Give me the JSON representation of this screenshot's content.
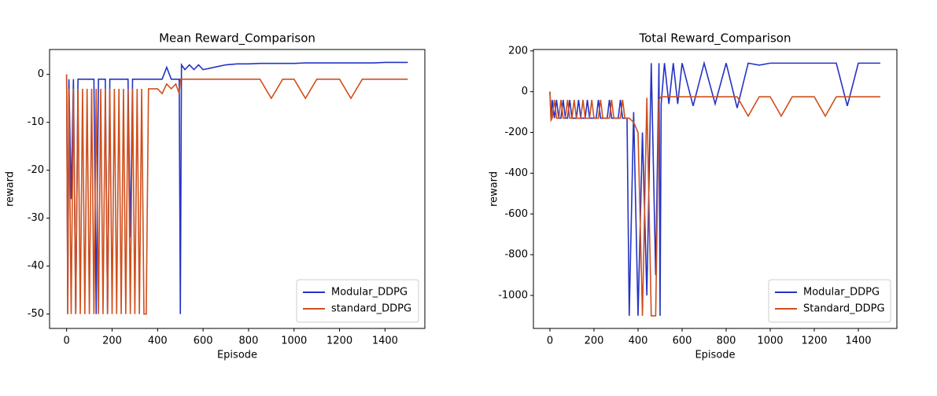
{
  "chart_data": [
    {
      "type": "line",
      "title": "Mean Reward_Comparison",
      "x_label": "Episode",
      "y_label": "reward",
      "x": [
        0,
        5,
        10,
        20,
        30,
        40,
        50,
        60,
        70,
        80,
        90,
        100,
        110,
        120,
        130,
        140,
        150,
        160,
        170,
        180,
        190,
        200,
        210,
        220,
        230,
        240,
        250,
        260,
        270,
        280,
        290,
        300,
        310,
        320,
        330,
        340,
        350,
        360,
        380,
        400,
        420,
        440,
        460,
        480,
        495,
        500,
        505,
        520,
        540,
        560,
        580,
        600,
        650,
        700,
        750,
        800,
        850,
        900,
        950,
        1000,
        1050,
        1100,
        1150,
        1200,
        1250,
        1300,
        1350,
        1400,
        1450,
        1500
      ],
      "series": [
        {
          "name": "Modular_DDPG",
          "color": "#2433c4",
          "values": [
            0,
            -50,
            -1,
            -26,
            -1,
            -50,
            -1,
            -1,
            -1,
            -1,
            -1,
            -1,
            -1,
            -1,
            -50,
            -1,
            -1,
            -1,
            -1,
            -50,
            -1,
            -1,
            -1,
            -1,
            -1,
            -1,
            -1,
            -1,
            -1,
            -34,
            -1,
            -1,
            -1,
            -1,
            -1,
            -1,
            -1,
            -1,
            -1,
            -1,
            -1,
            1.5,
            -1,
            -1,
            -1,
            -50,
            2,
            1,
            2,
            1,
            2,
            1,
            1.5,
            2,
            2.2,
            2.2,
            2.3,
            2.3,
            2.3,
            2.3,
            2.4,
            2.4,
            2.4,
            2.4,
            2.4,
            2.4,
            2.4,
            2.5,
            2.5,
            2.5
          ]
        },
        {
          "name": "standard_DDPG",
          "color": "#d04f1c",
          "values": [
            0,
            -50,
            -3,
            -50,
            -3,
            -50,
            -3,
            -50,
            -3,
            -50,
            -3,
            -50,
            -3,
            -50,
            -3,
            -50,
            -3,
            -50,
            -3,
            -50,
            -3,
            -50,
            -3,
            -50,
            -3,
            -50,
            -3,
            -50,
            -3,
            -50,
            -3,
            -50,
            -3,
            -50,
            -3,
            -50,
            -50,
            -3,
            -3,
            -3,
            -4,
            -2,
            -3,
            -2,
            -4,
            -1,
            -1,
            -1,
            -1,
            -1,
            -1,
            -1,
            -1,
            -1,
            -1,
            -1,
            -1,
            -5,
            -1,
            -1,
            -5,
            -1,
            -1,
            -1,
            -5,
            -1,
            -1,
            -1,
            -1,
            -1
          ]
        }
      ],
      "xlim": [
        -75,
        1575
      ],
      "xticks": [
        0,
        200,
        400,
        600,
        800,
        1000,
        1200,
        1400
      ],
      "ylim": [
        -53,
        5.2
      ],
      "yticks": [
        0,
        -10,
        -20,
        -30,
        -40,
        -50
      ],
      "legend": "lower right"
    },
    {
      "type": "line",
      "title": "Total Reward_Comparison",
      "x_label": "Episode",
      "y_label": "reward",
      "x": [
        0,
        5,
        10,
        20,
        30,
        40,
        50,
        60,
        70,
        80,
        90,
        100,
        110,
        120,
        130,
        140,
        150,
        160,
        170,
        180,
        190,
        200,
        210,
        220,
        230,
        240,
        250,
        260,
        270,
        280,
        290,
        300,
        310,
        320,
        330,
        340,
        350,
        360,
        380,
        400,
        420,
        440,
        460,
        480,
        495,
        500,
        505,
        520,
        540,
        560,
        580,
        600,
        650,
        700,
        750,
        800,
        850,
        900,
        950,
        1000,
        1050,
        1100,
        1150,
        1200,
        1250,
        1300,
        1350,
        1400,
        1450,
        1500
      ],
      "series": [
        {
          "name": "Modular_DDPG",
          "color": "#2433c4",
          "values": [
            0,
            -140,
            -40,
            -130,
            -40,
            -130,
            -130,
            -40,
            -130,
            -130,
            -40,
            -130,
            -130,
            -130,
            -40,
            -130,
            -130,
            -130,
            -40,
            -130,
            -130,
            -130,
            -130,
            -40,
            -130,
            -130,
            -130,
            -130,
            -40,
            -130,
            -130,
            -130,
            -130,
            -40,
            -130,
            -130,
            -130,
            -1100,
            -100,
            -1100,
            -200,
            -1000,
            140,
            -900,
            140,
            -1100,
            -60,
            140,
            -60,
            140,
            -60,
            140,
            -70,
            140,
            -60,
            140,
            -80,
            140,
            130,
            140,
            140,
            140,
            140,
            140,
            140,
            140,
            -70,
            140,
            140,
            140
          ]
        },
        {
          "name": "Standard_DDPG",
          "color": "#d04f1c",
          "values": [
            0,
            -140,
            -130,
            -40,
            -130,
            -130,
            -40,
            -130,
            -130,
            -40,
            -130,
            -130,
            -40,
            -130,
            -130,
            -130,
            -40,
            -130,
            -130,
            -130,
            -40,
            -130,
            -130,
            -130,
            -40,
            -130,
            -130,
            -130,
            -130,
            -40,
            -130,
            -130,
            -130,
            -130,
            -40,
            -130,
            -130,
            -130,
            -150,
            -200,
            -1100,
            -30,
            -1100,
            -1100,
            -40,
            -30,
            -25,
            -25,
            -25,
            -25,
            -25,
            -25,
            -25,
            -25,
            -25,
            -25,
            -25,
            -120,
            -25,
            -25,
            -120,
            -25,
            -25,
            -25,
            -120,
            -25,
            -25,
            -25,
            -25,
            -25
          ]
        }
      ],
      "xlim": [
        -75,
        1575
      ],
      "xticks": [
        0,
        200,
        400,
        600,
        800,
        1000,
        1200,
        1400
      ],
      "ylim": [
        -1162,
        207
      ],
      "yticks": [
        200,
        0,
        -200,
        -400,
        -600,
        -800,
        -1000
      ],
      "legend": "lower right"
    }
  ]
}
